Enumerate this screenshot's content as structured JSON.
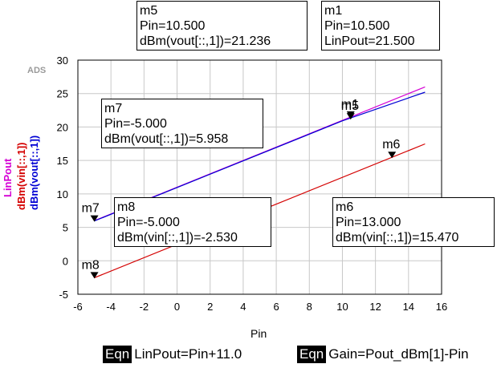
{
  "chart_data": {
    "type": "line",
    "xlabel": "Pin",
    "ylabels": [
      {
        "text": "LinPout",
        "color": "#d400d4"
      },
      {
        "text": "dBm(vin[::,1])",
        "color": "#d40000"
      },
      {
        "text": "dBm(vout[::,1])",
        "color": "#0000d4"
      }
    ],
    "xlim": [
      -6,
      16
    ],
    "ylim": [
      -5,
      30
    ],
    "xticks": [
      -6,
      -4,
      -2,
      0,
      2,
      4,
      6,
      8,
      10,
      12,
      14,
      16
    ],
    "yticks": [
      -5,
      0,
      5,
      10,
      15,
      20,
      25,
      30
    ],
    "grid": true,
    "series": [
      {
        "name": "LinPout",
        "color": "#d400d4",
        "x": [
          -5,
          15
        ],
        "y": [
          6.0,
          26.0
        ]
      },
      {
        "name": "dBm(vout[::,1])",
        "color": "#0000d4",
        "x": [
          -5,
          0,
          5,
          10,
          15
        ],
        "y": [
          5.958,
          10.95,
          15.94,
          20.93,
          25.2
        ]
      },
      {
        "name": "dBm(vin[::,1])",
        "color": "#d40000",
        "x": [
          -5,
          15
        ],
        "y": [
          -2.53,
          17.47
        ]
      }
    ],
    "markers": [
      {
        "id": "m5",
        "x": 10.5,
        "y": 21.236,
        "label": "m5"
      },
      {
        "id": "m1",
        "x": 10.5,
        "y": 21.5,
        "label": "m1"
      },
      {
        "id": "m6",
        "x": 13.0,
        "y": 15.47,
        "label": "m6"
      },
      {
        "id": "m7",
        "x": -5.0,
        "y": 5.958,
        "label": "m7"
      },
      {
        "id": "m8",
        "x": -5.0,
        "y": -2.53,
        "label": "m8"
      }
    ],
    "marker_labels_overlap": "m5"
  },
  "watermark": "ADS",
  "readouts": {
    "m5": [
      "m5",
      "Pin=10.500",
      "dBm(vout[::,1])=21.236"
    ],
    "m1": [
      "m1",
      "Pin=10.500",
      "LinPout=21.500"
    ],
    "m7": [
      "m7",
      "Pin=-5.000",
      "dBm(vout[::,1])=5.958"
    ],
    "m8": [
      "m8",
      "Pin=-5.000",
      "dBm(vin[::,1])=-2.530"
    ],
    "m6": [
      "m6",
      "Pin=13.000",
      "dBm(vin[::,1])=15.470"
    ]
  },
  "equations": [
    {
      "tag": "Eqn",
      "text": "LinPout=Pin+11.0"
    },
    {
      "tag": "Eqn",
      "text": "Gain=Pout_dBm[1]-Pin"
    }
  ]
}
